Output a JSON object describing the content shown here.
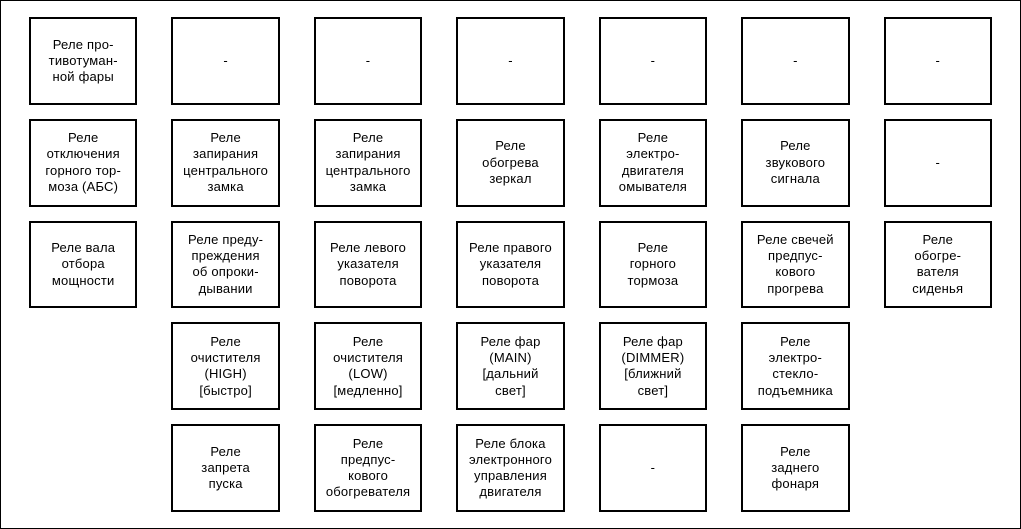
{
  "diagram": {
    "type": "relay-grid",
    "cols": 7,
    "rows": 5,
    "background_color": "#ffffff",
    "border_color": "#000000",
    "cell_border_width": 2,
    "font_family": "Arial",
    "font_size": 13,
    "text_color": "#000000",
    "column_gap": 34,
    "row_gap": 14,
    "rowsData": [
      [
        {
          "label": "Реле про-\nтивотуман-\nной фары",
          "present": true
        },
        {
          "label": "-",
          "present": true
        },
        {
          "label": "-",
          "present": true
        },
        {
          "label": "-",
          "present": true
        },
        {
          "label": "-",
          "present": true
        },
        {
          "label": "-",
          "present": true
        },
        {
          "label": "-",
          "present": true
        }
      ],
      [
        {
          "label": "Реле\nотключения\nгорного тор-\nмоза (АБС)",
          "present": true
        },
        {
          "label": "Реле\nзапирания\nцентрального\nзамка",
          "present": true
        },
        {
          "label": "Реле\nзапирания\nцентрального\nзамка",
          "present": true
        },
        {
          "label": "Реле\nобогрева\nзеркал",
          "present": true
        },
        {
          "label": "Реле\nэлектро-\nдвигателя\nомывателя",
          "present": true
        },
        {
          "label": "Реле\nзвукового\nсигнала",
          "present": true
        },
        {
          "label": "-",
          "present": true
        }
      ],
      [
        {
          "label": "Реле вала\nотбора\nмощности",
          "present": true
        },
        {
          "label": "Реле преду-\nпреждения\nоб опроки-\nдывании",
          "present": true
        },
        {
          "label": "Реле левого\nуказателя\nповорота",
          "present": true
        },
        {
          "label": "Реле правого\nуказателя\nповорота",
          "present": true
        },
        {
          "label": "Реле\nгорного\nтормоза",
          "present": true
        },
        {
          "label": "Реле свечей\nпредпус-\nкового\nпрогрева",
          "present": true
        },
        {
          "label": "Реле\nобогре-\nвателя\nсиденья",
          "present": true
        }
      ],
      [
        {
          "label": "",
          "present": false
        },
        {
          "label": "Реле\nочистителя\n(HIGH)\n[быстро]",
          "present": true
        },
        {
          "label": "Реле\nочистителя\n(LOW)\n[медленно]",
          "present": true
        },
        {
          "label": "Реле фар\n(MAIN)\n[дальний\nсвет]",
          "present": true
        },
        {
          "label": "Реле фар\n(DIMMER)\n[ближний\nсвет]",
          "present": true
        },
        {
          "label": "Реле\nэлектро-\nстекло-\nподъемника",
          "present": true
        },
        {
          "label": "",
          "present": false
        }
      ],
      [
        {
          "label": "",
          "present": false
        },
        {
          "label": "Реле\nзапрета\nпуска",
          "present": true
        },
        {
          "label": "Реле\nпредпус-\nкового\nобогревателя",
          "present": true
        },
        {
          "label": "Реле блока\nэлектронного\nуправления\nдвигателя",
          "present": true
        },
        {
          "label": "-",
          "present": true
        },
        {
          "label": "Реле\nзаднего\nфонаря",
          "present": true
        },
        {
          "label": "",
          "present": false
        }
      ]
    ]
  }
}
